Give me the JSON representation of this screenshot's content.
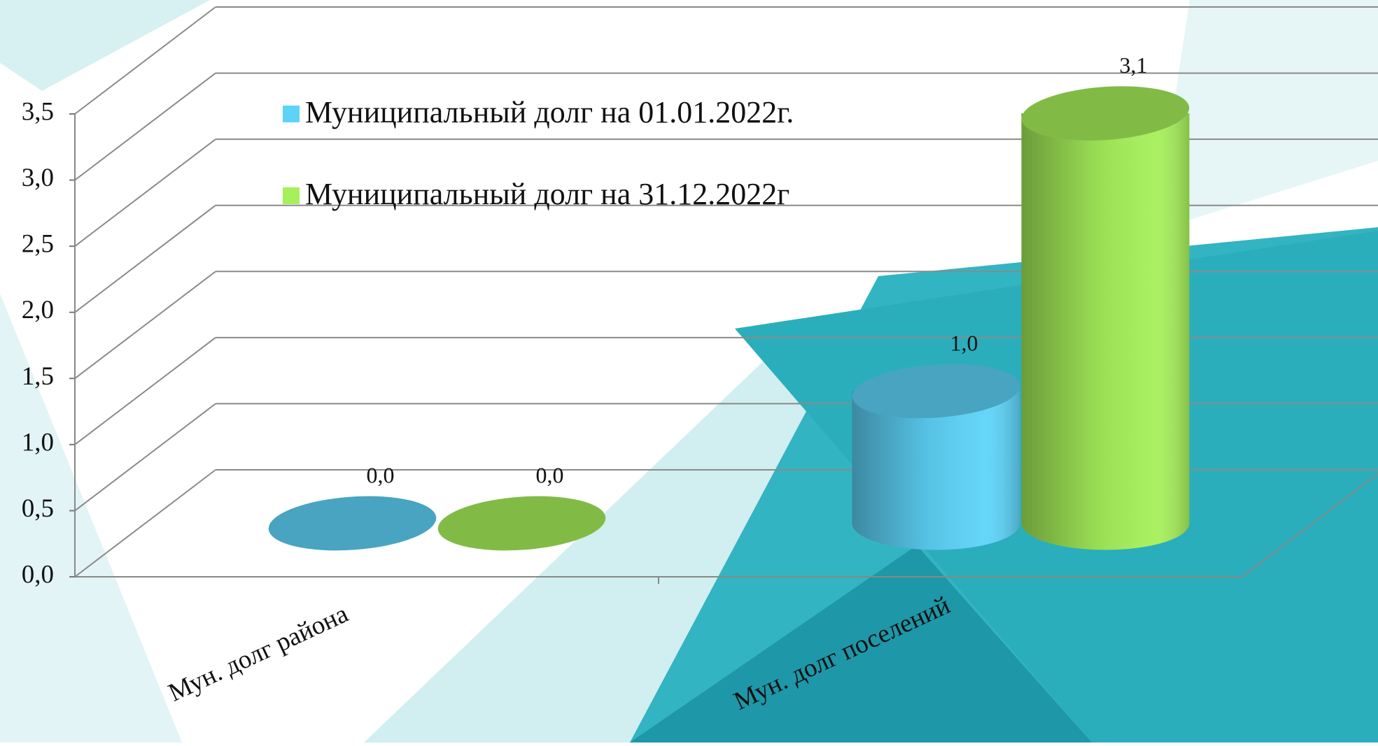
{
  "chart_data": {
    "type": "cylinder-bar",
    "categories": [
      "Мун. долг района",
      "Мун. долг поселений"
    ],
    "series": [
      {
        "name": "Муниципальный долг на 01.01.2022г.",
        "color": "#5dd3f8",
        "values": [
          0.0,
          1.0
        ],
        "value_labels": [
          "0,0",
          "1,0"
        ]
      },
      {
        "name": "Муниципальный долг на 31.12.2022г",
        "color": "#a6f05a",
        "values": [
          0.0,
          3.1
        ],
        "value_labels": [
          "0,0",
          "3,1"
        ]
      }
    ],
    "ylim": [
      0,
      3.5
    ],
    "yticks": [
      {
        "value": 0,
        "label": "0,0"
      },
      {
        "value": 0.5,
        "label": "0,5"
      },
      {
        "value": 1,
        "label": "1,0"
      },
      {
        "value": 1.5,
        "label": "1,5"
      },
      {
        "value": 2,
        "label": "2,0"
      },
      {
        "value": 2.5,
        "label": "2,5"
      },
      {
        "value": 3,
        "label": "3,0"
      },
      {
        "value": 3.5,
        "label": "3,5"
      }
    ],
    "grid": true
  }
}
